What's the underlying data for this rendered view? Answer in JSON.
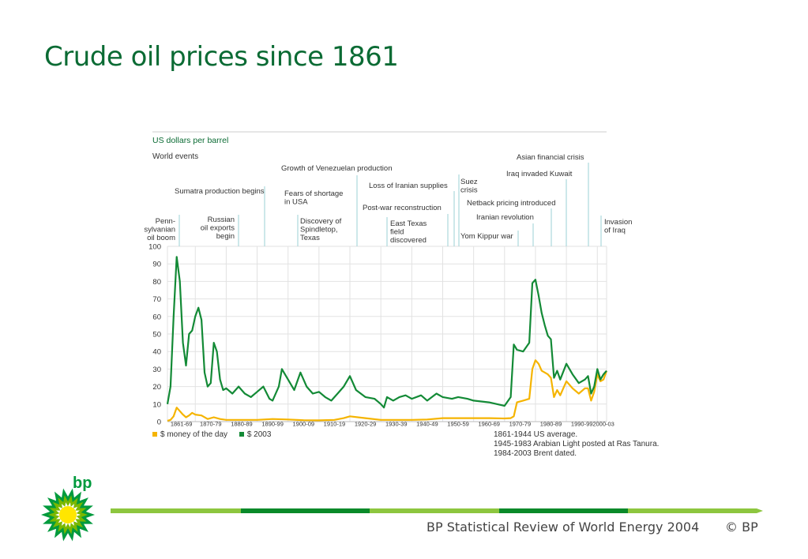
{
  "slide_title": "Crude oil prices since 1861",
  "footer": {
    "source": "BP Statistical Review of World Energy 2004",
    "copyright": "© BP"
  },
  "logo": {
    "text": "bp",
    "colors": [
      "#009a3d",
      "#7ab800",
      "#ffe600"
    ]
  },
  "colors": {
    "title": "#0b6b34",
    "series_nominal": "#f5b400",
    "series_real": "#138a36",
    "bar_light": "#8dc63f",
    "bar_dark": "#0a8a2a"
  },
  "chart_data": {
    "type": "line",
    "units_label": "US dollars per barrel",
    "events_heading": "World events",
    "xlim": [
      1861,
      2003
    ],
    "ylim": [
      0,
      100
    ],
    "yticks": [
      0,
      10,
      20,
      30,
      40,
      50,
      60,
      70,
      80,
      90,
      100
    ],
    "decade_labels": [
      "1861-69",
      "1870-79",
      "1880-89",
      "1890-99",
      "1900-09",
      "1910-19",
      "1920-29",
      "1930-39",
      "1940-49",
      "1950-59",
      "1960-69",
      "1970-79",
      "1980-89",
      "1990-99",
      "2000-03"
    ],
    "grid": true,
    "legend": "bottom-left",
    "series": [
      {
        "name": "$ money of the day",
        "x": [
          1861,
          1862,
          1863,
          1864,
          1865,
          1866,
          1867,
          1868,
          1869,
          1870,
          1872,
          1874,
          1876,
          1878,
          1880,
          1882,
          1885,
          1890,
          1895,
          1900,
          1905,
          1910,
          1915,
          1918,
          1920,
          1925,
          1930,
          1935,
          1940,
          1945,
          1950,
          1955,
          1960,
          1965,
          1970,
          1972,
          1973,
          1974,
          1976,
          1978,
          1979,
          1980,
          1981,
          1982,
          1983,
          1984,
          1985,
          1986,
          1987,
          1988,
          1990,
          1992,
          1994,
          1996,
          1997,
          1998,
          1999,
          2000,
          2001,
          2002,
          2003
        ],
        "values": [
          0.5,
          1,
          3,
          8,
          6,
          4,
          2.5,
          3.5,
          5,
          4,
          3.5,
          1.5,
          2.5,
          1.5,
          1,
          1,
          1,
          1,
          1.5,
          1.2,
          0.8,
          0.7,
          1,
          2,
          3,
          2,
          1,
          1,
          1,
          1.2,
          2,
          2,
          2,
          2,
          1.8,
          2,
          3,
          11,
          12,
          13,
          30,
          35,
          33,
          29,
          28,
          27,
          25,
          14,
          18,
          15,
          23,
          19,
          16,
          19,
          19,
          12,
          17,
          27,
          23,
          24,
          29
        ]
      },
      {
        "name": "$ 2003",
        "x": [
          1861,
          1862,
          1863,
          1864,
          1865,
          1866,
          1867,
          1868,
          1869,
          1870,
          1871,
          1872,
          1873,
          1874,
          1875,
          1876,
          1877,
          1878,
          1879,
          1880,
          1882,
          1884,
          1886,
          1888,
          1890,
          1892,
          1894,
          1895,
          1897,
          1898,
          1900,
          1902,
          1904,
          1906,
          1908,
          1910,
          1912,
          1914,
          1916,
          1918,
          1920,
          1922,
          1925,
          1928,
          1930,
          1931,
          1932,
          1934,
          1936,
          1938,
          1940,
          1943,
          1945,
          1948,
          1950,
          1953,
          1955,
          1958,
          1960,
          1965,
          1970,
          1972,
          1973,
          1974,
          1976,
          1978,
          1979,
          1980,
          1981,
          1982,
          1983,
          1984,
          1985,
          1986,
          1987,
          1988,
          1990,
          1992,
          1994,
          1996,
          1997,
          1998,
          1999,
          2000,
          2001,
          2002,
          2003
        ],
        "values": [
          10,
          20,
          60,
          94,
          80,
          45,
          32,
          50,
          52,
          60,
          65,
          58,
          28,
          20,
          22,
          45,
          40,
          24,
          18,
          19,
          16,
          20,
          16,
          14,
          17,
          20,
          13,
          12,
          20,
          30,
          24,
          18,
          28,
          20,
          16,
          17,
          14,
          12,
          16,
          20,
          26,
          18,
          14,
          13,
          10,
          8,
          14,
          12,
          14,
          15,
          13,
          15,
          12,
          16,
          14,
          13,
          14,
          13,
          12,
          11,
          9,
          14,
          44,
          41,
          40,
          45,
          79,
          81,
          72,
          62,
          55,
          49,
          47,
          25,
          29,
          24,
          33,
          27,
          22,
          24,
          26,
          16,
          20,
          30,
          24,
          27,
          29
        ]
      }
    ],
    "events_left": [
      {
        "text": "Penn- sylvanian oil boom",
        "lines": [
          "Penn-",
          "sylvanian",
          "oil boom"
        ]
      },
      {
        "text": "Russian oil exports begin",
        "lines": [
          "Russian",
          "oil exports",
          "begin"
        ]
      },
      {
        "text": "Sumatra production begins",
        "lines": [
          "Sumatra production begins"
        ]
      },
      {
        "text": "Fears of shortage in USA",
        "lines": [
          "Fears of shortage",
          "in USA"
        ]
      },
      {
        "text": "Discovery of Spindletop, Texas",
        "lines": [
          "Discovery of",
          "Spindletop,",
          "Texas"
        ]
      },
      {
        "text": "Growth of Venezuelan production",
        "lines": [
          "Growth of Venezuelan production"
        ]
      },
      {
        "text": "Loss of Iranian supplies",
        "lines": [
          "Loss of Iranian supplies"
        ]
      },
      {
        "text": "Post-war reconstruction",
        "lines": [
          "Post-war reconstruction"
        ]
      },
      {
        "text": "East Texas field discovered",
        "lines": [
          "East Texas",
          "field",
          "discovered"
        ]
      },
      {
        "text": "Suez crisis",
        "lines": [
          "Suez",
          "crisis"
        ]
      },
      {
        "text": "Yom Kippur war",
        "lines": [
          "Yom Kippur war"
        ]
      },
      {
        "text": "Iranian revolution",
        "lines": [
          "Iranian revolution"
        ]
      },
      {
        "text": "Netback pricing introduced",
        "lines": [
          "Netback pricing  introduced"
        ]
      },
      {
        "text": "Iraq invaded Kuwait",
        "lines": [
          "Iraq invaded Kuwait"
        ]
      },
      {
        "text": "Asian financial crisis",
        "lines": [
          "Asian financial crisis"
        ]
      },
      {
        "text": "Invasion of Iraq",
        "lines": [
          "Invasion",
          "of Iraq"
        ]
      }
    ],
    "notes": [
      "1861-1944 US average.",
      "1945-1983 Arabian Light posted at Ras Tanura.",
      "1984-2003 Brent dated."
    ]
  }
}
